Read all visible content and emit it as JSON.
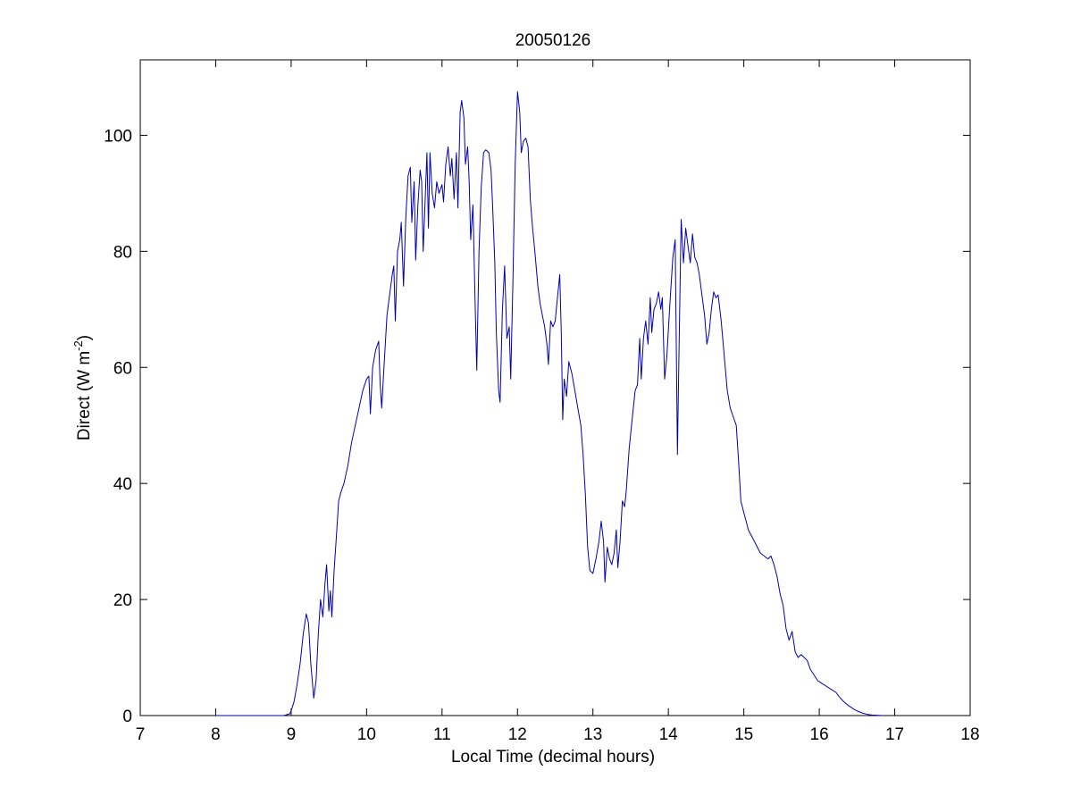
{
  "chart_data": {
    "type": "line",
    "title": "20050126",
    "xlabel": "Local Time (decimal hours)",
    "ylabel": {
      "prefix": "Direct (W m",
      "sup": "-2",
      "suffix": ")"
    },
    "xlim": [
      7,
      18
    ],
    "ylim": [
      0,
      113
    ],
    "xticks": [
      7,
      8,
      9,
      10,
      11,
      12,
      13,
      14,
      15,
      16,
      17,
      18
    ],
    "yticks": [
      0,
      20,
      40,
      60,
      80,
      100
    ],
    "grid": false,
    "series": [
      {
        "color": "#0000b3",
        "points": [
          [
            8.0,
            0
          ],
          [
            8.9,
            0
          ],
          [
            8.98,
            0.3
          ],
          [
            9.0,
            0.8
          ],
          [
            9.04,
            2.5
          ],
          [
            9.08,
            5.5
          ],
          [
            9.12,
            9
          ],
          [
            9.16,
            14
          ],
          [
            9.2,
            17.5
          ],
          [
            9.23,
            16
          ],
          [
            9.26,
            9
          ],
          [
            9.3,
            3
          ],
          [
            9.33,
            6
          ],
          [
            9.36,
            14
          ],
          [
            9.39,
            20
          ],
          [
            9.42,
            17
          ],
          [
            9.45,
            23
          ],
          [
            9.47,
            26
          ],
          [
            9.5,
            18
          ],
          [
            9.52,
            21.5
          ],
          [
            9.54,
            17
          ],
          [
            9.57,
            25
          ],
          [
            9.6,
            31
          ],
          [
            9.63,
            37
          ],
          [
            9.66,
            38.5
          ],
          [
            9.7,
            40
          ],
          [
            9.75,
            43
          ],
          [
            9.8,
            47
          ],
          [
            9.85,
            50
          ],
          [
            9.9,
            53
          ],
          [
            9.95,
            56
          ],
          [
            10.0,
            58
          ],
          [
            10.03,
            58.5
          ],
          [
            10.05,
            52
          ],
          [
            10.08,
            60
          ],
          [
            10.12,
            63
          ],
          [
            10.16,
            64.5
          ],
          [
            10.18,
            57
          ],
          [
            10.2,
            53
          ],
          [
            10.23,
            60
          ],
          [
            10.27,
            69
          ],
          [
            10.3,
            72
          ],
          [
            10.34,
            76
          ],
          [
            10.36,
            77.5
          ],
          [
            10.38,
            68
          ],
          [
            10.41,
            80
          ],
          [
            10.44,
            82
          ],
          [
            10.46,
            85
          ],
          [
            10.49,
            74
          ],
          [
            10.52,
            86
          ],
          [
            10.55,
            93
          ],
          [
            10.58,
            94.5
          ],
          [
            10.6,
            85
          ],
          [
            10.63,
            92
          ],
          [
            10.65,
            78.5
          ],
          [
            10.68,
            88
          ],
          [
            10.71,
            94
          ],
          [
            10.73,
            92
          ],
          [
            10.75,
            80
          ],
          [
            10.78,
            90
          ],
          [
            10.8,
            97
          ],
          [
            10.82,
            84
          ],
          [
            10.84,
            97
          ],
          [
            10.87,
            90
          ],
          [
            10.9,
            87.5
          ],
          [
            10.93,
            92
          ],
          [
            10.96,
            90
          ],
          [
            11.0,
            91.5
          ],
          [
            11.02,
            88.5
          ],
          [
            11.05,
            95
          ],
          [
            11.08,
            98
          ],
          [
            11.11,
            93
          ],
          [
            11.13,
            96
          ],
          [
            11.16,
            89
          ],
          [
            11.19,
            97
          ],
          [
            11.21,
            87.5
          ],
          [
            11.24,
            104
          ],
          [
            11.26,
            106
          ],
          [
            11.29,
            103
          ],
          [
            11.31,
            95
          ],
          [
            11.34,
            98
          ],
          [
            11.36,
            92
          ],
          [
            11.38,
            82
          ],
          [
            11.41,
            88
          ],
          [
            11.44,
            70
          ],
          [
            11.46,
            59.5
          ],
          [
            11.49,
            80
          ],
          [
            11.52,
            91
          ],
          [
            11.55,
            97
          ],
          [
            11.58,
            97.5
          ],
          [
            11.62,
            97
          ],
          [
            11.65,
            94
          ],
          [
            11.67,
            88
          ],
          [
            11.7,
            78
          ],
          [
            11.72,
            66
          ],
          [
            11.75,
            56
          ],
          [
            11.77,
            54
          ],
          [
            11.8,
            70
          ],
          [
            11.83,
            77.5
          ],
          [
            11.86,
            65
          ],
          [
            11.89,
            67
          ],
          [
            11.91,
            58
          ],
          [
            11.94,
            75
          ],
          [
            11.97,
            95
          ],
          [
            12.0,
            107.5
          ],
          [
            12.03,
            104
          ],
          [
            12.05,
            97
          ],
          [
            12.08,
            99
          ],
          [
            12.11,
            99.5
          ],
          [
            12.14,
            98
          ],
          [
            12.17,
            89
          ],
          [
            12.2,
            84
          ],
          [
            12.23,
            80
          ],
          [
            12.27,
            74
          ],
          [
            12.3,
            71
          ],
          [
            12.33,
            69
          ],
          [
            12.36,
            67
          ],
          [
            12.39,
            64
          ],
          [
            12.41,
            60.5
          ],
          [
            12.44,
            68
          ],
          [
            12.47,
            67
          ],
          [
            12.5,
            68
          ],
          [
            12.53,
            72
          ],
          [
            12.56,
            76
          ],
          [
            12.58,
            66
          ],
          [
            12.6,
            51
          ],
          [
            12.62,
            58
          ],
          [
            12.65,
            55
          ],
          [
            12.68,
            61
          ],
          [
            12.72,
            59
          ],
          [
            12.76,
            56
          ],
          [
            12.8,
            53
          ],
          [
            12.84,
            50
          ],
          [
            12.87,
            45
          ],
          [
            12.9,
            38
          ],
          [
            12.93,
            29
          ],
          [
            12.96,
            25
          ],
          [
            13.0,
            24.5
          ],
          [
            13.04,
            27
          ],
          [
            13.08,
            30
          ],
          [
            13.11,
            33.5
          ],
          [
            13.14,
            30
          ],
          [
            13.16,
            23
          ],
          [
            13.19,
            29
          ],
          [
            13.22,
            27
          ],
          [
            13.25,
            26
          ],
          [
            13.28,
            28
          ],
          [
            13.31,
            32
          ],
          [
            13.33,
            25.5
          ],
          [
            13.36,
            30
          ],
          [
            13.39,
            37
          ],
          [
            13.42,
            36
          ],
          [
            13.44,
            38.5
          ],
          [
            13.48,
            46
          ],
          [
            13.52,
            51
          ],
          [
            13.56,
            56
          ],
          [
            13.59,
            57
          ],
          [
            13.62,
            65
          ],
          [
            13.64,
            58
          ],
          [
            13.67,
            65
          ],
          [
            13.7,
            68
          ],
          [
            13.73,
            64
          ],
          [
            13.76,
            72
          ],
          [
            13.78,
            66
          ],
          [
            13.81,
            70
          ],
          [
            13.84,
            71
          ],
          [
            13.87,
            73
          ],
          [
            13.9,
            70
          ],
          [
            13.92,
            72
          ],
          [
            13.95,
            58
          ],
          [
            13.98,
            62
          ],
          [
            14.02,
            71
          ],
          [
            14.06,
            79
          ],
          [
            14.09,
            82
          ],
          [
            14.12,
            45
          ],
          [
            14.14,
            62
          ],
          [
            14.17,
            85.5
          ],
          [
            14.2,
            78
          ],
          [
            14.23,
            84
          ],
          [
            14.26,
            81
          ],
          [
            14.29,
            78
          ],
          [
            14.32,
            83
          ],
          [
            14.35,
            79
          ],
          [
            14.38,
            78
          ],
          [
            14.41,
            76
          ],
          [
            14.44,
            73
          ],
          [
            14.48,
            69
          ],
          [
            14.51,
            64
          ],
          [
            14.54,
            66
          ],
          [
            14.57,
            70
          ],
          [
            14.6,
            73
          ],
          [
            14.63,
            72
          ],
          [
            14.66,
            72.5
          ],
          [
            14.7,
            68
          ],
          [
            14.74,
            62
          ],
          [
            14.78,
            56
          ],
          [
            14.82,
            53
          ],
          [
            14.86,
            51.5
          ],
          [
            14.9,
            50
          ],
          [
            14.93,
            44
          ],
          [
            14.96,
            37
          ],
          [
            15.0,
            35
          ],
          [
            15.03,
            33.5
          ],
          [
            15.06,
            32
          ],
          [
            15.1,
            31
          ],
          [
            15.14,
            30
          ],
          [
            15.18,
            29
          ],
          [
            15.22,
            28
          ],
          [
            15.27,
            27.5
          ],
          [
            15.32,
            27
          ],
          [
            15.36,
            27.5
          ],
          [
            15.4,
            26
          ],
          [
            15.44,
            24
          ],
          [
            15.48,
            21
          ],
          [
            15.52,
            19
          ],
          [
            15.56,
            15
          ],
          [
            15.6,
            13
          ],
          [
            15.64,
            14.5
          ],
          [
            15.68,
            11
          ],
          [
            15.72,
            10
          ],
          [
            15.76,
            10.5
          ],
          [
            15.8,
            10
          ],
          [
            15.84,
            9.5
          ],
          [
            15.88,
            8
          ],
          [
            15.93,
            7
          ],
          [
            15.98,
            6
          ],
          [
            16.04,
            5.5
          ],
          [
            16.1,
            5
          ],
          [
            16.16,
            4.5
          ],
          [
            16.22,
            4
          ],
          [
            16.28,
            3
          ],
          [
            16.34,
            2.2
          ],
          [
            16.4,
            1.6
          ],
          [
            16.46,
            1.1
          ],
          [
            16.52,
            0.7
          ],
          [
            16.58,
            0.4
          ],
          [
            16.64,
            0.2
          ],
          [
            16.7,
            0.1
          ],
          [
            16.78,
            0.05
          ],
          [
            16.84,
            0
          ]
        ]
      }
    ]
  }
}
